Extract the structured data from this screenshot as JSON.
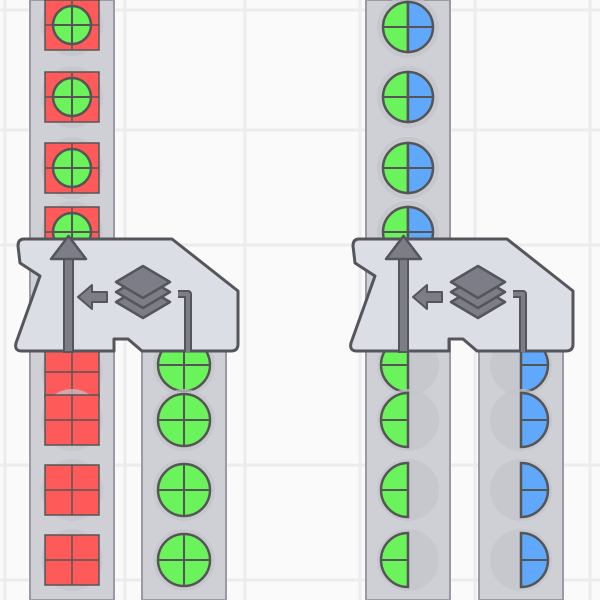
{
  "colors": {
    "background": "#fafafa",
    "grid": "#ececef",
    "belt": "#cfd0d5",
    "belt_border": "#9a9ba2",
    "machine_fill": "#dcdee5",
    "machine_stroke": "#55565c",
    "icon_fill": "#7c7d86",
    "red": "#ff5a5a",
    "green": "#6af35a",
    "blue": "#5fa8fb",
    "outline": "#555555"
  },
  "machines": [
    {
      "name": "cutter-machine-left",
      "icon": "stack-layers-icon"
    },
    {
      "name": "cutter-machine-right",
      "icon": "stack-layers-icon"
    }
  ],
  "belts": [
    {
      "name": "belt-left-input",
      "items_above": [
        "red-square-green-circle",
        "red-square-green-circle",
        "red-square-green-circle",
        "red-square-green-circle"
      ],
      "items_below": [
        "red-square",
        "red-square",
        "red-square",
        "red-square"
      ]
    },
    {
      "name": "belt-left-output",
      "items_below": [
        "green-circle",
        "green-circle",
        "green-circle",
        "green-circle"
      ]
    },
    {
      "name": "belt-right-input",
      "items_above": [
        "green-blue-circle",
        "green-blue-circle",
        "green-blue-circle",
        "green-blue-circle"
      ],
      "items_below": [
        "green-left-half",
        "green-left-half",
        "green-left-half",
        "green-left-half"
      ]
    },
    {
      "name": "belt-right-output",
      "items_below": [
        "blue-right-half",
        "blue-right-half",
        "blue-right-half",
        "blue-right-half"
      ]
    }
  ]
}
